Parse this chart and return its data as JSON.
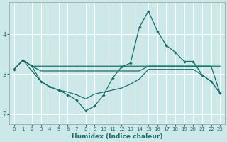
{
  "xlabel": "Humidex (Indice chaleur)",
  "background_color": "#cde8e8",
  "grid_color": "#ffffff",
  "line_color": "#1a6e6a",
  "xlim": [
    -0.5,
    23.5
  ],
  "ylim": [
    1.75,
    4.8
  ],
  "yticks": [
    2,
    3,
    4
  ],
  "xticks": [
    0,
    1,
    2,
    3,
    4,
    5,
    6,
    7,
    8,
    9,
    10,
    11,
    12,
    13,
    14,
    15,
    16,
    17,
    18,
    19,
    20,
    21,
    22,
    23
  ],
  "series1_x": [
    0,
    1,
    2,
    3,
    4,
    5,
    6,
    7,
    8,
    9,
    10,
    11,
    12,
    13,
    14,
    15,
    16,
    17,
    18,
    19,
    20,
    21,
    22,
    23
  ],
  "series1_y": [
    3.12,
    3.35,
    3.2,
    3.2,
    3.2,
    3.2,
    3.2,
    3.2,
    3.2,
    3.2,
    3.2,
    3.2,
    3.2,
    3.2,
    3.2,
    3.2,
    3.2,
    3.2,
    3.2,
    3.2,
    3.2,
    3.2,
    3.2,
    3.2
  ],
  "series2_x": [
    0,
    1,
    2,
    3,
    4,
    5,
    6,
    7,
    8,
    9,
    10,
    11,
    12,
    13,
    14,
    15,
    16,
    17,
    18,
    19,
    20,
    21,
    22,
    23
  ],
  "series2_y": [
    3.12,
    3.35,
    3.2,
    2.82,
    2.68,
    2.6,
    2.48,
    2.35,
    2.08,
    2.2,
    2.48,
    2.9,
    3.18,
    3.28,
    4.18,
    4.58,
    4.08,
    3.72,
    3.55,
    3.32,
    3.32,
    2.98,
    2.82,
    2.52
  ],
  "series3_x": [
    0,
    1,
    2,
    3,
    4,
    5,
    6,
    7,
    8,
    9,
    10,
    11,
    12,
    13,
    14,
    15,
    16,
    17,
    18,
    19,
    20,
    21,
    22,
    23
  ],
  "series3_y": [
    3.12,
    3.35,
    3.08,
    2.82,
    2.68,
    2.6,
    2.55,
    2.48,
    2.38,
    2.5,
    2.55,
    2.6,
    2.65,
    2.75,
    2.88,
    3.12,
    3.12,
    3.12,
    3.12,
    3.12,
    3.12,
    2.98,
    2.82,
    2.52
  ],
  "series4_x": [
    0,
    1,
    2,
    3,
    4,
    5,
    6,
    7,
    8,
    9,
    10,
    11,
    12,
    13,
    14,
    15,
    16,
    17,
    18,
    19,
    20,
    21,
    22,
    23
  ],
  "series4_y": [
    3.12,
    3.35,
    3.2,
    3.08,
    3.08,
    3.08,
    3.08,
    3.08,
    3.08,
    3.08,
    3.08,
    3.08,
    3.08,
    3.08,
    3.08,
    3.2,
    3.2,
    3.2,
    3.2,
    3.2,
    3.2,
    3.2,
    3.2,
    2.52
  ]
}
